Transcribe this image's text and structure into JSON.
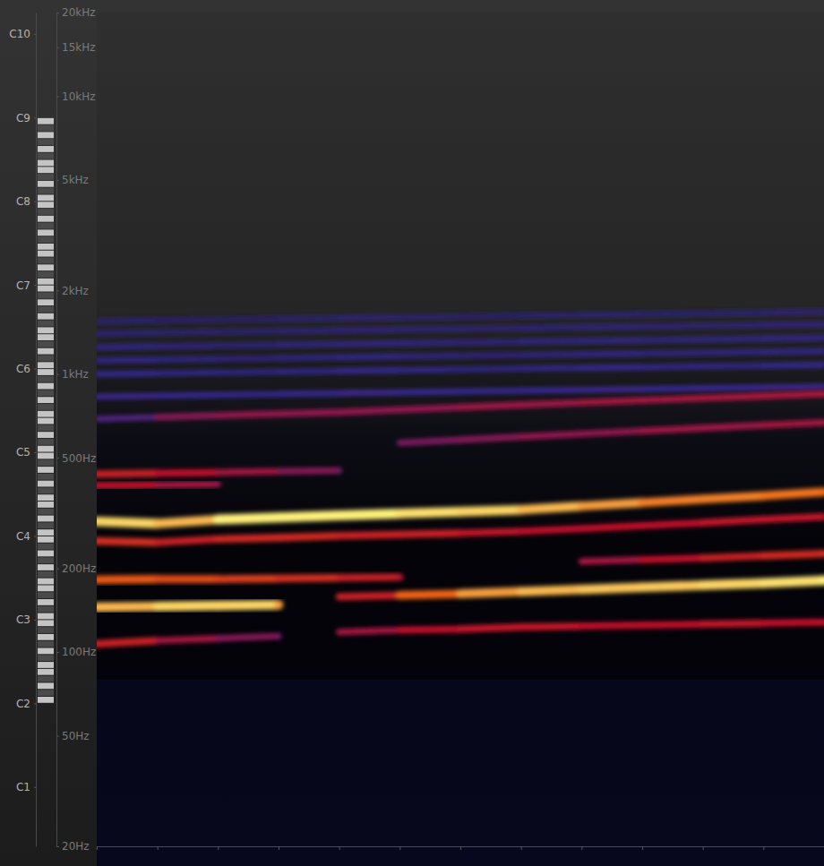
{
  "chart_data": {
    "type": "spectrogram",
    "x": [
      0,
      1,
      2,
      3,
      4,
      5,
      6,
      7,
      8,
      9,
      10,
      11,
      12
    ],
    "xlim": [
      0,
      12
    ],
    "xticks": [
      0,
      1,
      2,
      3,
      4,
      5,
      6,
      7,
      8,
      9,
      10,
      11,
      12
    ],
    "ylim": [
      20,
      20000
    ],
    "yticks": [
      {
        "value": 20,
        "label": "20Hz"
      },
      {
        "value": 50,
        "label": "50Hz"
      },
      {
        "value": 100,
        "label": "100Hz"
      },
      {
        "value": 200,
        "label": "200Hz"
      },
      {
        "value": 500,
        "label": "500Hz"
      },
      {
        "value": 1000,
        "label": "1kHz"
      },
      {
        "value": 2000,
        "label": "2kHz"
      },
      {
        "value": 5000,
        "label": "5kHz"
      },
      {
        "value": 10000,
        "label": "10kHz"
      },
      {
        "value": 15000,
        "label": "15kHz"
      },
      {
        "value": 20000,
        "label": "20kHz"
      }
    ],
    "y2lim": [
      20,
      20000
    ],
    "y2ticks": [
      {
        "value": 32.7,
        "label": "C1"
      },
      {
        "value": 65.41,
        "label": "C2"
      },
      {
        "value": 130.81,
        "label": "C3"
      },
      {
        "value": 261.63,
        "label": "C4"
      },
      {
        "value": 523.25,
        "label": "C5"
      },
      {
        "value": 1046.5,
        "label": "C6"
      },
      {
        "value": 2093,
        "label": "C7"
      },
      {
        "value": 4186,
        "label": "C8"
      },
      {
        "value": 8372,
        "label": "C9"
      },
      {
        "value": 16744,
        "label": "C10"
      }
    ],
    "log": "y",
    "grid": false,
    "tick_labels": "y",
    "zlim": [
      0,
      1
    ],
    "series": [
      {
        "values": [
          1550,
          1560,
          1571,
          1581,
          1591,
          1602,
          1612,
          1622,
          1633,
          1643,
          1653,
          1664,
          1674
        ],
        "intensity": [
          0.15,
          0.14,
          0.13,
          0.15,
          0.16,
          0.15,
          0.14,
          0.15,
          0.16,
          0.15,
          0.15,
          0.16,
          0.15
        ]
      },
      {
        "values": [
          1400,
          1409,
          1419,
          1428,
          1437,
          1447,
          1456,
          1465,
          1475,
          1484,
          1493,
          1503,
          1512
        ],
        "intensity": [
          0.17,
          0.16,
          0.15,
          0.17,
          0.18,
          0.17,
          0.16,
          0.17,
          0.18,
          0.17,
          0.17,
          0.18,
          0.17
        ]
      },
      {
        "values": [
          1250,
          1258,
          1267,
          1275,
          1283,
          1292,
          1300,
          1308,
          1317,
          1325,
          1333,
          1342,
          1350
        ],
        "intensity": [
          0.2,
          0.19,
          0.18,
          0.2,
          0.21,
          0.2,
          0.19,
          0.2,
          0.21,
          0.2,
          0.2,
          0.21,
          0.2
        ]
      },
      {
        "values": [
          1120,
          1127,
          1135,
          1142,
          1150,
          1157,
          1165,
          1172,
          1180,
          1187,
          1195,
          1202,
          1210
        ],
        "intensity": [
          0.22,
          0.2,
          0.18,
          0.2,
          0.22,
          0.2,
          0.18,
          0.2,
          0.22,
          0.2,
          0.2,
          0.22,
          0.2
        ]
      },
      {
        "values": [
          1000,
          1007,
          1013,
          1020,
          1027,
          1033,
          1040,
          1047,
          1053,
          1060,
          1067,
          1073,
          1080
        ],
        "intensity": [
          0.24,
          0.22,
          0.2,
          0.22,
          0.24,
          0.22,
          0.2,
          0.22,
          0.24,
          0.22,
          0.22,
          0.24,
          0.22
        ]
      },
      {
        "values": [
          830,
          836,
          842,
          848,
          854,
          860,
          866,
          872,
          878,
          884,
          890,
          896,
          902
        ],
        "intensity": [
          0.26,
          0.25,
          0.24,
          0.25,
          0.26,
          0.25,
          0.24,
          0.25,
          0.26,
          0.25,
          0.25,
          0.26,
          0.25
        ]
      },
      {
        "values": [
          690,
          700,
          710,
          720,
          730,
          745,
          760,
          775,
          790,
          805,
          820,
          835,
          850
        ],
        "intensity": [
          0.3,
          0.4,
          0.42,
          0.42,
          0.42,
          0.42,
          0.44,
          0.44,
          0.45,
          0.45,
          0.46,
          0.46,
          0.46
        ]
      },
      {
        "values": [
          null,
          null,
          null,
          null,
          null,
          566,
          580,
          595,
          610,
          625,
          640,
          655,
          670
        ],
        "intensity": [
          null,
          null,
          null,
          null,
          null,
          0.38,
          0.4,
          0.42,
          0.42,
          0.44,
          0.44,
          0.45,
          0.45
        ]
      },
      {
        "values": [
          437,
          440,
          443,
          447,
          450,
          null,
          null,
          null,
          null,
          null,
          null,
          null,
          null
        ],
        "intensity": [
          0.55,
          0.5,
          0.45,
          0.4,
          0.35,
          null,
          null,
          null,
          null,
          null,
          null,
          null,
          null
        ]
      },
      {
        "values": [
          397,
          399,
          402,
          null,
          null,
          null,
          null,
          null,
          null,
          null,
          null,
          null,
          null
        ],
        "intensity": [
          0.5,
          0.45,
          0.4,
          null,
          null,
          null,
          null,
          null,
          null,
          null,
          null,
          null,
          null
        ]
      },
      {
        "values": [
          251,
          248,
          255,
          258,
          262,
          265,
          268,
          272,
          278,
          285,
          292,
          300,
          307
        ],
        "intensity": [
          0.6,
          0.55,
          0.58,
          0.58,
          0.56,
          0.55,
          0.52,
          0.5,
          0.5,
          0.5,
          0.52,
          0.52,
          0.5
        ]
      },
      {
        "values": [
          182,
          183,
          183,
          184,
          185,
          186,
          null,
          null,
          null,
          null,
          null,
          null,
          null
        ],
        "intensity": [
          0.72,
          0.68,
          0.64,
          0.6,
          0.55,
          0.48,
          null,
          null,
          null,
          null,
          null,
          null,
          null
        ]
      },
      {
        "values": [
          null,
          null,
          null,
          null,
          null,
          null,
          null,
          null,
          212,
          215,
          218,
          222,
          226
        ],
        "intensity": [
          null,
          null,
          null,
          null,
          null,
          null,
          null,
          null,
          0.45,
          0.5,
          0.55,
          0.58,
          0.6
        ]
      },
      {
        "values": [
          107,
          110,
          112,
          114,
          null,
          null,
          null,
          null,
          null,
          null,
          null,
          null,
          null
        ],
        "intensity": [
          0.55,
          0.45,
          0.4,
          0.35,
          null,
          null,
          null,
          null,
          null,
          null,
          null,
          null,
          null
        ]
      },
      {
        "values": [
          null,
          null,
          null,
          null,
          118,
          120,
          121,
          123,
          124,
          125,
          126,
          127,
          128
        ],
        "intensity": [
          null,
          null,
          null,
          null,
          0.45,
          0.5,
          0.52,
          0.52,
          0.5,
          0.5,
          0.52,
          0.5,
          0.5
        ]
      },
      {
        "values": [
          145,
          146,
          147,
          148,
          null,
          null,
          null,
          null,
          null,
          null,
          null,
          null,
          null
        ],
        "intensity": [
          0.9,
          0.95,
          0.95,
          0.85,
          null,
          null,
          null,
          null,
          null,
          null,
          null,
          null,
          null
        ]
      },
      {
        "values": [
          null,
          null,
          null,
          null,
          158,
          160,
          162,
          165,
          168,
          171,
          174,
          177,
          181
        ],
        "intensity": [
          null,
          null,
          null,
          null,
          0.55,
          0.75,
          0.85,
          0.9,
          0.92,
          0.93,
          0.95,
          0.97,
          1
        ]
      },
      {
        "values": [
          295,
          290,
          300,
          305,
          310,
          315,
          320,
          325,
          335,
          345,
          355,
          365,
          377
        ],
        "intensity": [
          0.95,
          0.9,
          1,
          1,
          1,
          0.97,
          0.95,
          0.9,
          0.85,
          0.8,
          0.8,
          0.78,
          0.76
        ]
      }
    ]
  }
}
